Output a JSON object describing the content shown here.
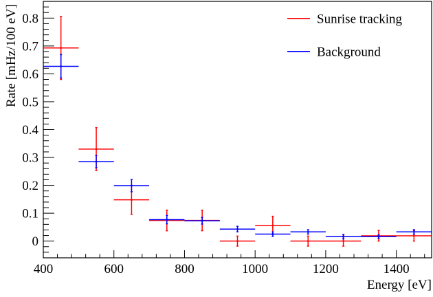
{
  "chart_data": {
    "type": "scatter",
    "title": "",
    "xlabel": "Energy [eV]",
    "ylabel": "Rate [mHz/100 eV]",
    "xlim": [
      400,
      1500
    ],
    "ylim": [
      -0.06,
      0.86
    ],
    "x_ticks": [
      400,
      600,
      800,
      1000,
      1200,
      1400
    ],
    "y_ticks": [
      0,
      0.1,
      0.2,
      0.3,
      0.4,
      0.5,
      0.6,
      0.7,
      0.8
    ],
    "legend_position": "top-right",
    "grid": false,
    "bin_width": 100,
    "series": [
      {
        "name": "Sunrise tracking",
        "color": "#ff0000",
        "x": [
          450,
          550,
          650,
          750,
          850,
          950,
          1050,
          1150,
          1250,
          1350,
          1450
        ],
        "y": [
          0.693,
          0.33,
          0.148,
          0.074,
          0.074,
          0.0,
          0.056,
          0.0,
          0.0,
          0.019,
          0.019
        ],
        "err": [
          0.113,
          0.077,
          0.052,
          0.037,
          0.037,
          0.018,
          0.033,
          0.018,
          0.018,
          0.019,
          0.019
        ]
      },
      {
        "name": "Background",
        "color": "#0000ff",
        "x": [
          450,
          550,
          650,
          750,
          850,
          950,
          1050,
          1150,
          1250,
          1350,
          1450
        ],
        "y": [
          0.627,
          0.285,
          0.199,
          0.077,
          0.073,
          0.043,
          0.025,
          0.033,
          0.016,
          0.016,
          0.033
        ],
        "err": [
          0.042,
          0.022,
          0.022,
          0.015,
          0.012,
          0.01,
          0.008,
          0.008,
          0.008,
          0.006,
          0.008
        ]
      }
    ]
  }
}
